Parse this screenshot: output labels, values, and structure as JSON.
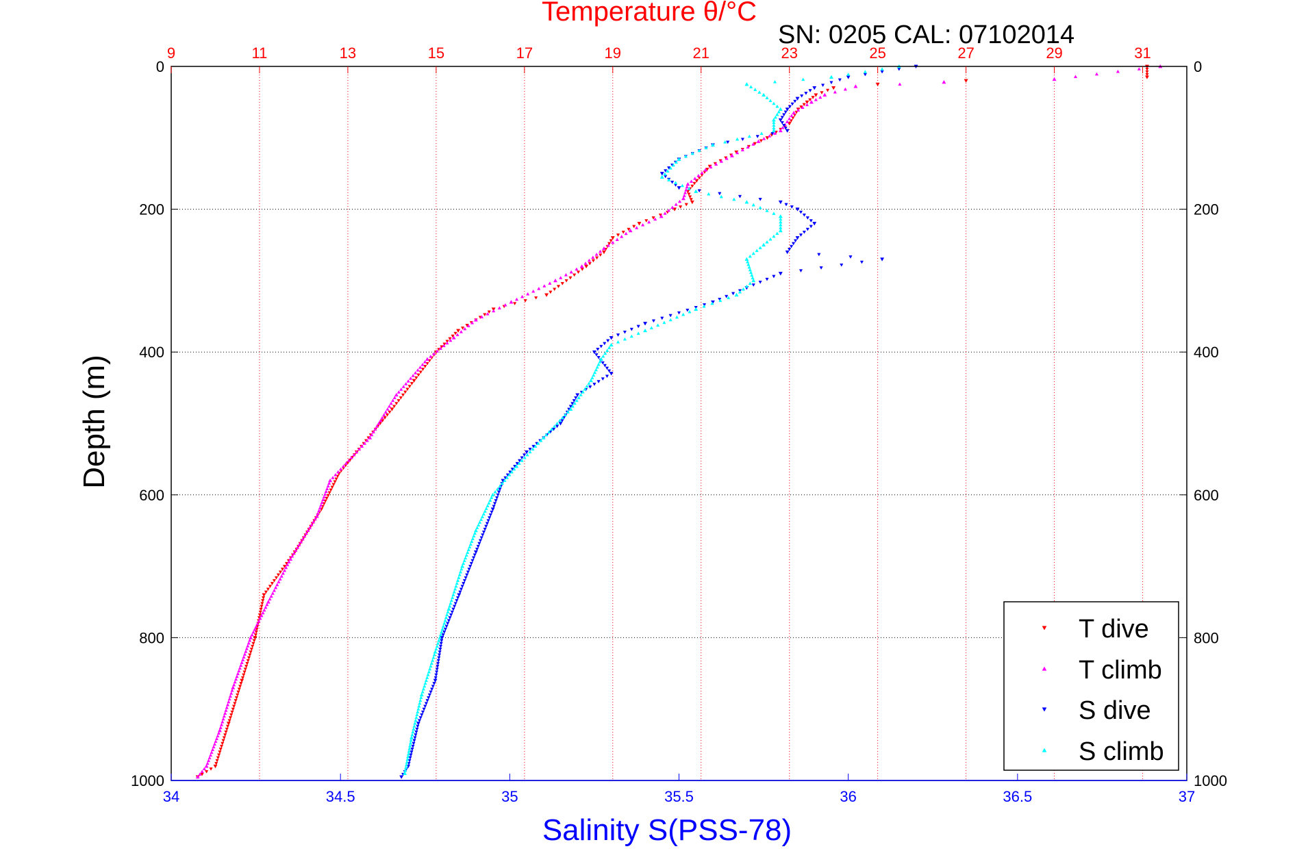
{
  "chart_data": {
    "type": "scatter",
    "title": "Temperature θ/°C",
    "subtitle": "SN: 0205  CAL: 07102014",
    "xlabel": "Salinity S(PSS-78)",
    "ylabel": "Depth (m)",
    "x_bottom": {
      "label": "Salinity S(PSS-78)",
      "lim": [
        34,
        37
      ],
      "ticks": [
        34,
        34.5,
        35,
        35.5,
        36,
        36.5,
        37
      ]
    },
    "x_top": {
      "label": "Temperature θ/°C",
      "lim": [
        9,
        32
      ],
      "ticks": [
        9,
        11,
        13,
        15,
        17,
        19,
        21,
        23,
        25,
        27,
        29,
        31
      ]
    },
    "y": {
      "label": "Depth (m)",
      "lim": [
        0,
        1000
      ],
      "reversed": true,
      "ticks": [
        0,
        200,
        400,
        600,
        800,
        1000
      ]
    },
    "grid": true,
    "legend_position": "bottom-right",
    "colors": {
      "t_dive": "#ff0000",
      "t_climb": "#ff00ff",
      "s_dive": "#0000ff",
      "s_climb": "#00ffff",
      "temp_axis": "#ff0000",
      "sal_axis": "#0000ff"
    },
    "series": [
      {
        "name": "T dive",
        "axis": "temperature",
        "marker": "triangle-down",
        "color": "#ff0000",
        "points": [
          [
            31.1,
            0
          ],
          [
            31.1,
            15
          ],
          [
            27.0,
            20
          ],
          [
            25.0,
            25
          ],
          [
            24.0,
            30
          ],
          [
            23.6,
            40
          ],
          [
            23.4,
            50
          ],
          [
            23.2,
            60
          ],
          [
            23.0,
            80
          ],
          [
            22.5,
            100
          ],
          [
            21.8,
            120
          ],
          [
            21.2,
            140
          ],
          [
            20.9,
            160
          ],
          [
            20.7,
            175
          ],
          [
            20.8,
            190
          ],
          [
            20.4,
            200
          ],
          [
            19.6,
            220
          ],
          [
            19.0,
            240
          ],
          [
            18.8,
            260
          ],
          [
            18.4,
            280
          ],
          [
            17.5,
            320
          ],
          [
            16.3,
            340
          ],
          [
            15.5,
            370
          ],
          [
            15.0,
            400
          ],
          [
            14.5,
            440
          ],
          [
            14.0,
            480
          ],
          [
            13.2,
            540
          ],
          [
            12.8,
            570
          ],
          [
            12.4,
            620
          ],
          [
            11.8,
            680
          ],
          [
            11.1,
            740
          ],
          [
            10.9,
            800
          ],
          [
            10.6,
            860
          ],
          [
            10.3,
            920
          ],
          [
            10.0,
            980
          ],
          [
            9.6,
            995
          ]
        ]
      },
      {
        "name": "T climb",
        "axis": "temperature",
        "marker": "triangle-up",
        "color": "#ff00ff",
        "points": [
          [
            31.4,
            0
          ],
          [
            29.0,
            18
          ],
          [
            26.5,
            22
          ],
          [
            24.5,
            28
          ],
          [
            23.8,
            40
          ],
          [
            23.5,
            50
          ],
          [
            23.1,
            65
          ],
          [
            22.8,
            90
          ],
          [
            22.3,
            105
          ],
          [
            21.7,
            125
          ],
          [
            21.1,
            145
          ],
          [
            20.7,
            165
          ],
          [
            20.6,
            185
          ],
          [
            20.1,
            210
          ],
          [
            19.4,
            230
          ],
          [
            18.8,
            255
          ],
          [
            18.3,
            280
          ],
          [
            17.7,
            300
          ],
          [
            16.7,
            330
          ],
          [
            15.9,
            355
          ],
          [
            15.4,
            380
          ],
          [
            14.8,
            410
          ],
          [
            14.1,
            460
          ],
          [
            13.5,
            520
          ],
          [
            12.6,
            580
          ],
          [
            12.3,
            630
          ],
          [
            11.7,
            690
          ],
          [
            11.2,
            750
          ],
          [
            10.8,
            800
          ],
          [
            10.4,
            870
          ],
          [
            10.1,
            930
          ],
          [
            9.8,
            980
          ],
          [
            9.6,
            995
          ]
        ]
      },
      {
        "name": "S dive",
        "axis": "salinity",
        "marker": "triangle-down",
        "color": "#0000ff",
        "points": [
          [
            36.2,
            0
          ],
          [
            36.0,
            15
          ],
          [
            35.9,
            30
          ],
          [
            35.85,
            45
          ],
          [
            35.82,
            60
          ],
          [
            35.8,
            75
          ],
          [
            35.82,
            90
          ],
          [
            35.6,
            110
          ],
          [
            35.5,
            130
          ],
          [
            35.45,
            150
          ],
          [
            35.5,
            170
          ],
          [
            35.8,
            190
          ],
          [
            35.85,
            200
          ],
          [
            35.9,
            220
          ],
          [
            35.85,
            240
          ],
          [
            35.82,
            260
          ],
          [
            36.1,
            270
          ],
          [
            35.8,
            290
          ],
          [
            35.7,
            310
          ],
          [
            35.6,
            330
          ],
          [
            35.4,
            360
          ],
          [
            35.3,
            380
          ],
          [
            35.25,
            400
          ],
          [
            35.3,
            430
          ],
          [
            35.2,
            460
          ],
          [
            35.15,
            500
          ],
          [
            35.05,
            540
          ],
          [
            34.98,
            580
          ],
          [
            34.95,
            620
          ],
          [
            34.9,
            680
          ],
          [
            34.85,
            740
          ],
          [
            34.8,
            800
          ],
          [
            34.78,
            860
          ],
          [
            34.73,
            920
          ],
          [
            34.7,
            980
          ],
          [
            34.68,
            995
          ]
        ]
      },
      {
        "name": "S climb",
        "axis": "salinity",
        "marker": "triangle-up",
        "color": "#00ffff",
        "points": [
          [
            36.15,
            0
          ],
          [
            35.95,
            15
          ],
          [
            35.7,
            25
          ],
          [
            35.75,
            40
          ],
          [
            35.8,
            60
          ],
          [
            35.78,
            75
          ],
          [
            35.78,
            90
          ],
          [
            35.6,
            110
          ],
          [
            35.5,
            130
          ],
          [
            35.45,
            155
          ],
          [
            35.55,
            175
          ],
          [
            35.7,
            190
          ],
          [
            35.8,
            210
          ],
          [
            35.8,
            230
          ],
          [
            35.75,
            250
          ],
          [
            35.7,
            270
          ],
          [
            35.72,
            300
          ],
          [
            35.67,
            320
          ],
          [
            35.55,
            340
          ],
          [
            35.4,
            370
          ],
          [
            35.3,
            390
          ],
          [
            35.27,
            410
          ],
          [
            35.24,
            440
          ],
          [
            35.18,
            480
          ],
          [
            35.1,
            520
          ],
          [
            35.02,
            560
          ],
          [
            34.95,
            600
          ],
          [
            34.9,
            650
          ],
          [
            34.86,
            700
          ],
          [
            34.82,
            760
          ],
          [
            34.78,
            820
          ],
          [
            34.74,
            880
          ],
          [
            34.71,
            940
          ],
          [
            34.69,
            990
          ]
        ]
      }
    ]
  }
}
